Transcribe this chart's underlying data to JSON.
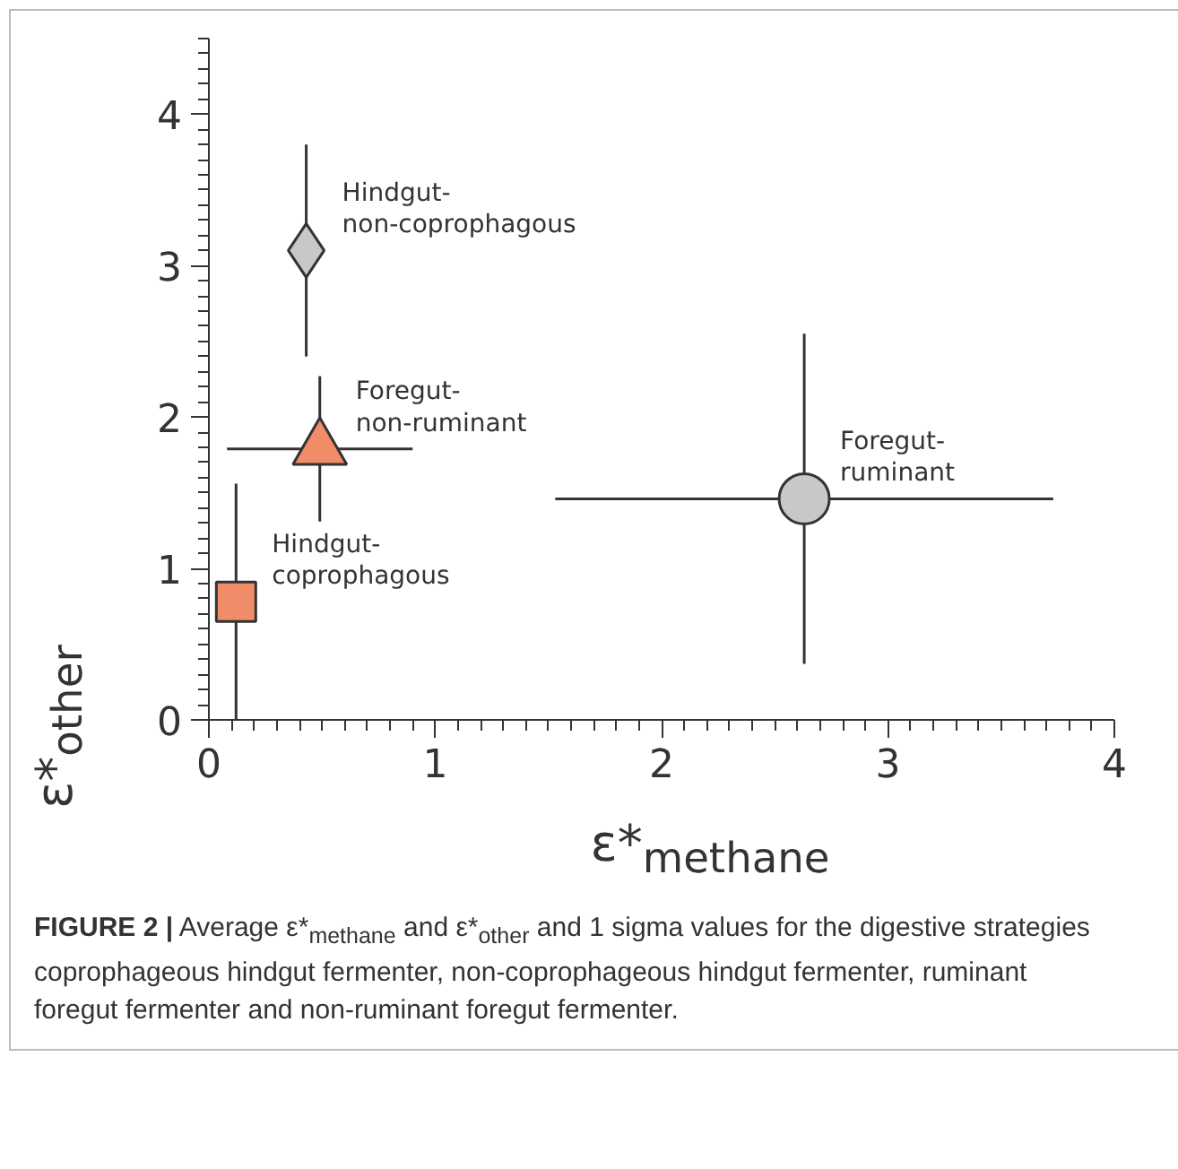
{
  "chart_data": {
    "type": "scatter",
    "xlabel": "ε*$_{methane}$",
    "ylabel": "ε*$_{other}$",
    "xlim": [
      0,
      4
    ],
    "ylim": [
      0,
      4.5
    ],
    "xticks": [
      0,
      1,
      2,
      3,
      4
    ],
    "yticks": [
      0,
      1,
      2,
      3,
      4
    ],
    "grid": false,
    "legend": false,
    "series": [
      {
        "name": "Hindgut-coprophagous",
        "color": "#f08c68",
        "marker": "square",
        "x": [
          0.12
        ],
        "values": [
          0.78
        ],
        "errors": [
          0.78
        ]
      },
      {
        "name": "Hindgut-non-coprophagous",
        "color": "#c8c8ca",
        "marker": "diamond",
        "x": [
          0.43
        ],
        "values": [
          3.1
        ],
        "errors": [
          0.7
        ]
      },
      {
        "name": "Foregut-non-ruminant",
        "color": "#f08c68",
        "marker": "triangle",
        "x": [
          0.49
        ],
        "values": [
          1.79
        ],
        "errors": [
          0.48
        ],
        "xerrors": [
          0.41
        ]
      },
      {
        "name": "Foregut-ruminant",
        "color": "#c8c8ca",
        "marker": "circle",
        "x": [
          2.63
        ],
        "values": [
          1.46
        ],
        "errors": [
          1.09
        ],
        "xerrors": [
          1.1
        ]
      }
    ],
    "annotations": [
      "FIGURE 2 | Average ε*$_{methane}$ and ε*$_{other}$ and 1 sigma values for the digestive strategies coprophageous hindgut fermenter, non-coprophageous hindgut fermenter, ruminant foregut fermenter and non-ruminant foregut fermenter."
    ]
  }
}
